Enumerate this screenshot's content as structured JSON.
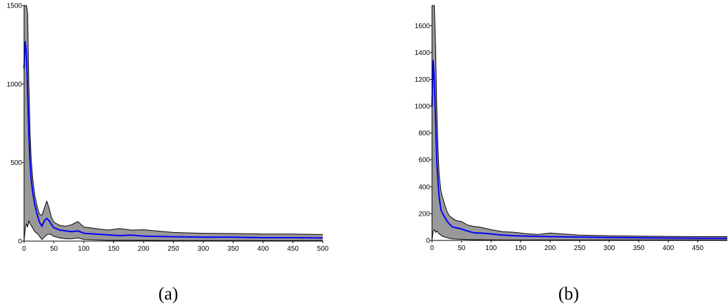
{
  "chart_data": [
    {
      "type": "area",
      "panel_label": "(a)",
      "xlim": [
        0,
        500
      ],
      "ylim": [
        0,
        1500
      ],
      "x_ticks": [
        0,
        50,
        100,
        150,
        200,
        250,
        300,
        350,
        400,
        450,
        500
      ],
      "y_ticks": [
        0,
        500,
        1000,
        1500
      ],
      "grid": false,
      "series": [
        {
          "role": "mean",
          "color": "#0000ff",
          "x": [
            0,
            2,
            4,
            6,
            8,
            10,
            12,
            15,
            18,
            22,
            26,
            30,
            34,
            38,
            42,
            46,
            50,
            60,
            70,
            80,
            90,
            100,
            120,
            140,
            160,
            180,
            200,
            250,
            300,
            350,
            400,
            450,
            500
          ],
          "y": [
            1100,
            1270,
            1200,
            950,
            680,
            500,
            390,
            300,
            230,
            170,
            120,
            95,
            130,
            145,
            130,
            105,
            85,
            70,
            65,
            60,
            65,
            50,
            45,
            40,
            35,
            38,
            32,
            28,
            25,
            25,
            22,
            22,
            20
          ]
        },
        {
          "role": "upper-band",
          "color": "#000000",
          "x": [
            0,
            2,
            4,
            6,
            8,
            10,
            12,
            15,
            18,
            22,
            26,
            30,
            34,
            38,
            42,
            46,
            50,
            60,
            70,
            80,
            90,
            100,
            120,
            140,
            160,
            180,
            200,
            250,
            300,
            350,
            400,
            450,
            500
          ],
          "y": [
            1500,
            1500,
            1500,
            1450,
            1000,
            700,
            520,
            380,
            290,
            220,
            170,
            165,
            210,
            255,
            210,
            150,
            120,
            100,
            95,
            105,
            125,
            90,
            80,
            70,
            80,
            70,
            72,
            55,
            50,
            48,
            45,
            45,
            42
          ]
        },
        {
          "role": "lower-band",
          "color": "#000000",
          "x": [
            0,
            2,
            4,
            6,
            8,
            10,
            12,
            15,
            18,
            22,
            26,
            30,
            34,
            38,
            42,
            46,
            50,
            60,
            70,
            80,
            90,
            100,
            120,
            140,
            160,
            180,
            200,
            250,
            300,
            350,
            400,
            450,
            500
          ],
          "y": [
            0,
            80,
            110,
            90,
            130,
            110,
            100,
            80,
            60,
            50,
            30,
            10,
            25,
            40,
            45,
            40,
            30,
            20,
            15,
            15,
            20,
            10,
            8,
            5,
            5,
            5,
            5,
            3,
            3,
            3,
            3,
            3,
            3
          ]
        }
      ]
    },
    {
      "type": "area",
      "panel_label": "(b)",
      "xlim": [
        0,
        500
      ],
      "ylim": [
        0,
        1750
      ],
      "x_ticks": [
        0,
        50,
        100,
        150,
        200,
        250,
        300,
        350,
        400,
        450
      ],
      "y_ticks": [
        0,
        200,
        400,
        600,
        800,
        1000,
        1200,
        1400,
        1600
      ],
      "grid": false,
      "series": [
        {
          "role": "mean",
          "color": "#0000ff",
          "x": [
            0,
            2,
            4,
            6,
            8,
            10,
            12,
            15,
            18,
            22,
            26,
            30,
            35,
            40,
            50,
            60,
            70,
            80,
            90,
            100,
            120,
            140,
            160,
            180,
            200,
            250,
            300,
            350,
            400,
            450,
            500
          ],
          "y": [
            1000,
            1340,
            1200,
            900,
            600,
            450,
            330,
            230,
            200,
            170,
            140,
            120,
            100,
            95,
            85,
            70,
            58,
            55,
            52,
            48,
            40,
            35,
            32,
            30,
            28,
            25,
            22,
            20,
            18,
            17,
            16
          ]
        },
        {
          "role": "upper-band",
          "color": "#000000",
          "x": [
            0,
            2,
            4,
            6,
            8,
            10,
            12,
            15,
            18,
            22,
            26,
            30,
            35,
            40,
            50,
            60,
            70,
            80,
            90,
            100,
            120,
            140,
            160,
            180,
            200,
            250,
            300,
            350,
            400,
            450,
            500
          ],
          "y": [
            1750,
            1750,
            1750,
            1450,
            1000,
            700,
            500,
            370,
            320,
            260,
            210,
            180,
            165,
            150,
            140,
            115,
            105,
            100,
            90,
            80,
            65,
            60,
            50,
            45,
            55,
            40,
            35,
            32,
            30,
            28,
            28
          ]
        },
        {
          "role": "lower-band",
          "color": "#000000",
          "x": [
            0,
            2,
            4,
            6,
            8,
            10,
            12,
            15,
            18,
            22,
            26,
            30,
            35,
            40,
            50,
            60,
            70,
            80,
            90,
            100,
            120,
            140,
            160,
            180,
            200,
            250,
            300,
            350,
            400,
            450,
            500
          ],
          "y": [
            0,
            70,
            80,
            60,
            70,
            60,
            50,
            40,
            30,
            25,
            20,
            15,
            12,
            10,
            8,
            6,
            5,
            5,
            4,
            4,
            3,
            3,
            3,
            3,
            3,
            3,
            3,
            3,
            3,
            3,
            3
          ]
        }
      ]
    }
  ],
  "colors": {
    "band_fill": "#999999",
    "mean_line": "#0000ff",
    "band_edge": "#000000"
  }
}
